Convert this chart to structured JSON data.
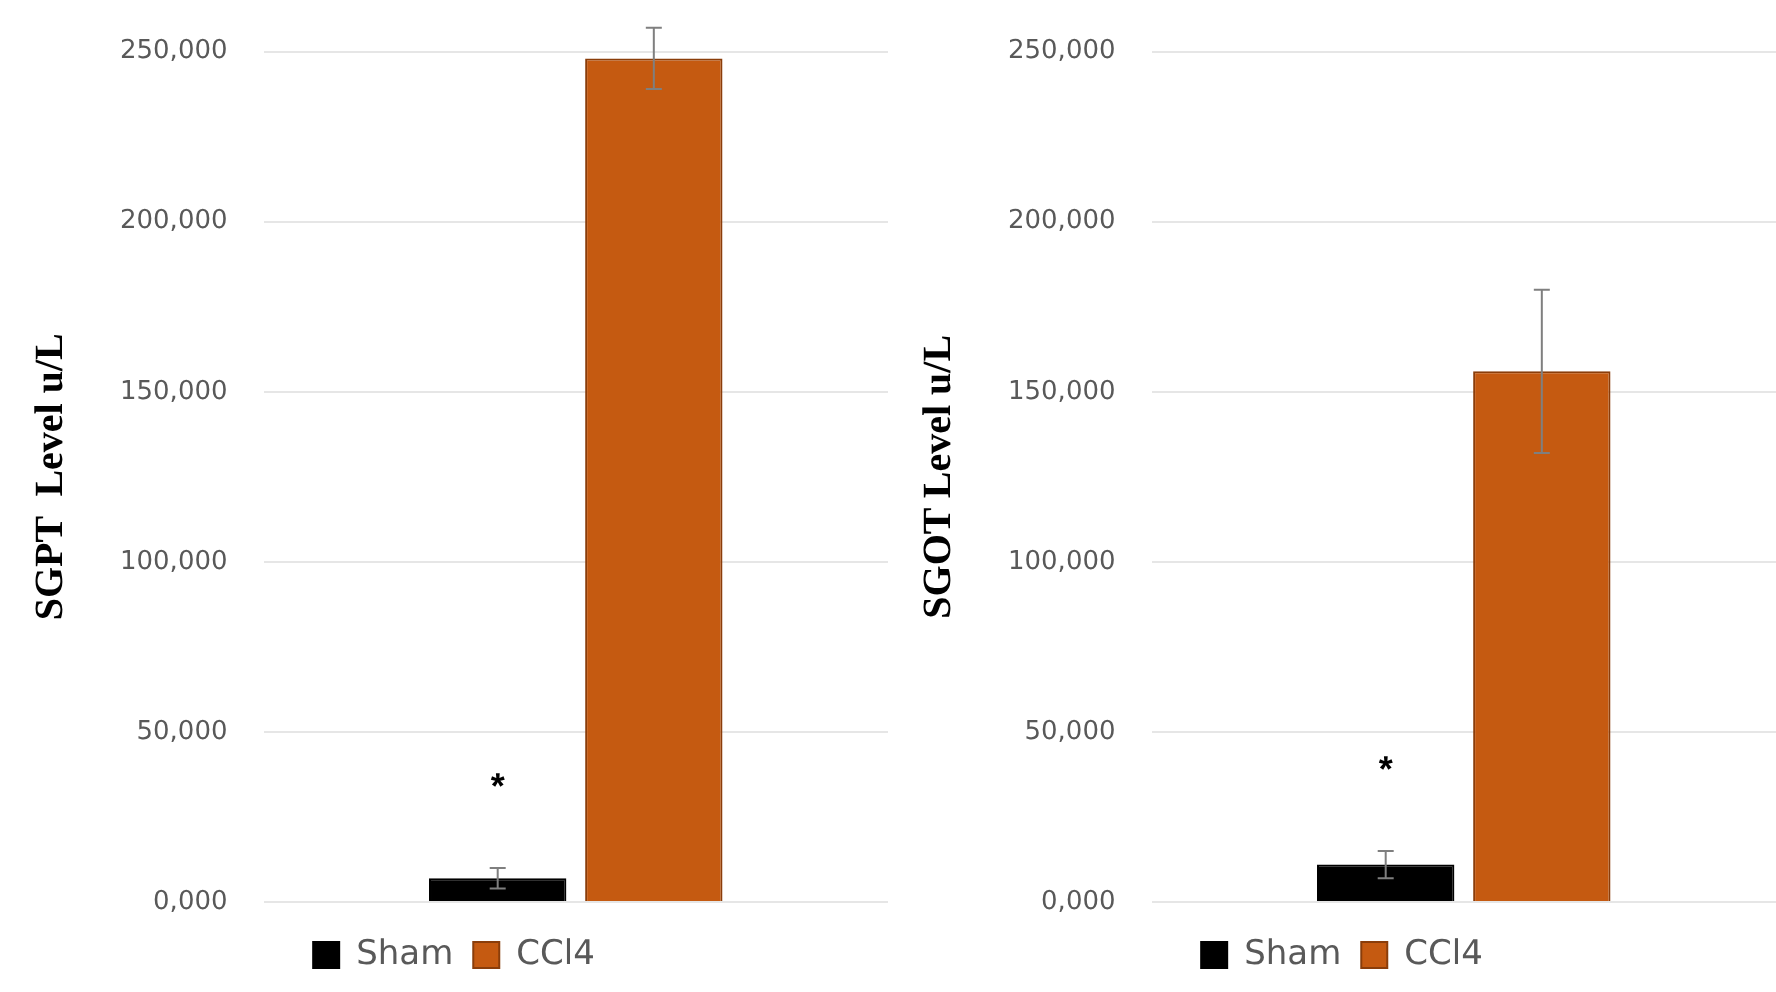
{
  "chart_data": [
    {
      "type": "bar",
      "ylabel": "SGPT  Level u/L",
      "categories": [
        null
      ],
      "series": [
        {
          "name": "Sham",
          "color": "#000000",
          "values": [
            7
          ],
          "errors": [
            3
          ]
        },
        {
          "name": "CCl4",
          "color": "#c55a11",
          "values": [
            248
          ],
          "errors": [
            9
          ]
        }
      ],
      "ylim": [
        0,
        250
      ],
      "yticks": [
        {
          "value": 0,
          "label": "0,000"
        },
        {
          "value": 50,
          "label": "50,000"
        },
        {
          "value": 100,
          "label": "100,000"
        },
        {
          "value": 150,
          "label": "150,000"
        },
        {
          "value": 200,
          "label": "200,000"
        },
        {
          "value": 250,
          "label": "250,000"
        }
      ],
      "grid": "y",
      "legend": "bottom",
      "annotations": [
        "*"
      ]
    },
    {
      "type": "bar",
      "ylabel": "SGOT Level u/L",
      "categories": [
        null
      ],
      "series": [
        {
          "name": "Sham",
          "color": "#000000",
          "values": [
            11
          ],
          "errors": [
            4
          ]
        },
        {
          "name": "CCl4",
          "color": "#c55a11",
          "values": [
            156
          ],
          "errors": [
            24
          ]
        }
      ],
      "ylim": [
        0,
        250
      ],
      "yticks": [
        {
          "value": 0,
          "label": "0,000"
        },
        {
          "value": 50,
          "label": "50,000"
        },
        {
          "value": 100,
          "label": "100,000"
        },
        {
          "value": 150,
          "label": "150,000"
        },
        {
          "value": 200,
          "label": "200,000"
        },
        {
          "value": 250,
          "label": "250,000"
        }
      ],
      "grid": "y",
      "legend": "bottom",
      "annotations": [
        "*"
      ]
    }
  ]
}
